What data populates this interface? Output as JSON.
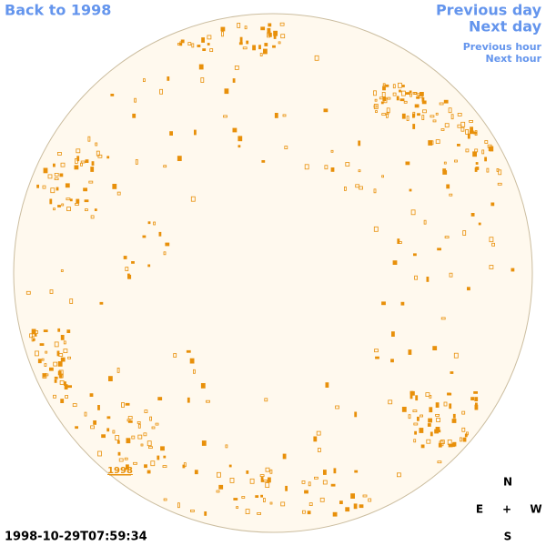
{
  "header": {
    "back_link": "Back to 1998",
    "previous_day": "Previous day",
    "next_day": "Next day",
    "previous_hour": "Previous hour",
    "next_hour": "Next hour"
  },
  "image": {
    "region_label": "1998"
  },
  "footer": {
    "timestamp": "1998-10-29T07:59:34"
  },
  "compass": {
    "north": "N",
    "east": "E",
    "center": "+",
    "west": "W",
    "south": "S"
  }
}
